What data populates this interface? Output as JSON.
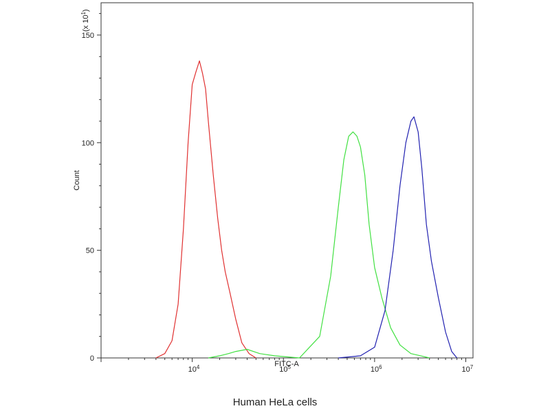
{
  "chart_data": {
    "type": "line",
    "title": "",
    "caption": "Human HeLa cells",
    "xlabel": "FITC-A",
    "ylabel": "Count",
    "y_multiplier_label": "(x 10",
    "y_multiplier_exp": "1",
    "y_multiplier_close": ")",
    "xscale": "log",
    "xlim": [
      1000,
      12000000
    ],
    "ylim": [
      0,
      165
    ],
    "x_ticks": [
      {
        "value": 10000,
        "base": "10",
        "exp": "4"
      },
      {
        "value": 100000,
        "base": "10",
        "exp": "5"
      },
      {
        "value": 1000000,
        "base": "10",
        "exp": "6"
      },
      {
        "value": 10000000,
        "base": "10",
        "exp": "7"
      }
    ],
    "y_ticks": [
      {
        "value": 0,
        "label": "0"
      },
      {
        "value": 50,
        "label": "50"
      },
      {
        "value": 100,
        "label": "100"
      },
      {
        "value": 150,
        "label": "150"
      }
    ],
    "grid": false,
    "legend": "none",
    "series": [
      {
        "color": "#e03030",
        "x": [
          4000,
          5000,
          6000,
          7000,
          8000,
          9000,
          10000,
          11000,
          12000,
          13000,
          14000,
          15000,
          17000,
          19000,
          21000,
          23000,
          26000,
          30000,
          35000,
          42000,
          50000
        ],
        "y": [
          0,
          2,
          8,
          25,
          60,
          100,
          127,
          133,
          138,
          132,
          125,
          110,
          85,
          65,
          50,
          40,
          30,
          18,
          7,
          2,
          0
        ]
      },
      {
        "color": "#40e040",
        "x": [
          15000,
          20000,
          25000,
          30000,
          40000,
          55000,
          80000,
          150000,
          250000,
          330000,
          400000,
          460000,
          520000,
          580000,
          640000,
          700000,
          780000,
          870000,
          1000000,
          1200000,
          1500000,
          1900000,
          2500000,
          3200000,
          4000000
        ],
        "y": [
          0,
          1,
          2,
          3,
          4,
          2,
          1,
          0,
          10,
          38,
          70,
          92,
          103,
          105,
          103,
          98,
          85,
          62,
          42,
          28,
          14,
          6,
          2,
          1,
          0
        ]
      },
      {
        "color": "#2020b0",
        "x": [
          400000,
          700000,
          1000000,
          1300000,
          1600000,
          1900000,
          2200000,
          2500000,
          2700000,
          3000000,
          3300000,
          3700000,
          4200000,
          5000000,
          6000000,
          7000000,
          8000000
        ],
        "y": [
          0,
          1,
          5,
          22,
          50,
          80,
          100,
          110,
          112,
          105,
          88,
          62,
          45,
          28,
          12,
          3,
          0
        ]
      }
    ]
  }
}
